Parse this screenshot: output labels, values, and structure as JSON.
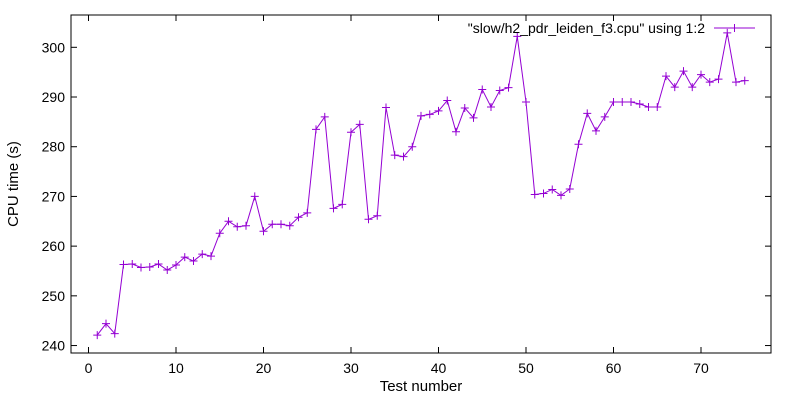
{
  "chart_data": {
    "type": "line",
    "xlabel": "Test number",
    "ylabel": "CPU time (s)",
    "xlim": [
      -2,
      78
    ],
    "ylim": [
      238.5,
      306.5
    ],
    "xticks": [
      0,
      10,
      20,
      30,
      40,
      50,
      60,
      70
    ],
    "yticks": [
      240,
      250,
      260,
      270,
      280,
      290,
      300
    ],
    "grid": false,
    "legend_position": "top-right",
    "series": [
      {
        "name": "\"slow/h2_pdr_leiden_f3.cpu\" using 1:2",
        "color": "#9400d3",
        "marker": "plus",
        "x": [
          1,
          2,
          3,
          4,
          5,
          6,
          7,
          8,
          9,
          10,
          11,
          12,
          13,
          14,
          15,
          16,
          17,
          18,
          19,
          20,
          21,
          22,
          23,
          24,
          25,
          26,
          27,
          28,
          29,
          30,
          31,
          32,
          33,
          34,
          35,
          36,
          37,
          38,
          39,
          40,
          41,
          42,
          43,
          44,
          45,
          46,
          47,
          48,
          49,
          50,
          51,
          52,
          53,
          54,
          55,
          56,
          57,
          58,
          59,
          60,
          61,
          62,
          63,
          64,
          65,
          66,
          67,
          68,
          69,
          70,
          71,
          72,
          73,
          74,
          75
        ],
        "y": [
          242.1,
          244.4,
          242.4,
          256.3,
          256.4,
          255.7,
          255.8,
          256.4,
          255.2,
          256.2,
          257.8,
          257.0,
          258.4,
          258.0,
          262.6,
          265.0,
          263.9,
          264.1,
          270.0,
          263.0,
          264.4,
          264.4,
          264.1,
          265.8,
          266.7,
          283.5,
          286.0,
          267.6,
          268.4,
          282.9,
          284.5,
          265.4,
          266.1,
          287.9,
          278.3,
          278.0,
          280.0,
          286.2,
          286.5,
          287.2,
          289.3,
          283.0,
          287.8,
          285.8,
          291.5,
          288.0,
          291.3,
          291.9,
          302.2,
          289.0,
          270.4,
          270.6,
          271.4,
          270.2,
          271.5,
          280.5,
          286.7,
          283.2,
          286.0,
          289.0,
          289.0,
          289.0,
          288.6,
          288.0,
          288.0,
          294.2,
          292.0,
          295.2,
          292.0,
          294.5,
          293.0,
          293.6,
          302.9,
          293.0,
          293.3
        ]
      }
    ]
  }
}
